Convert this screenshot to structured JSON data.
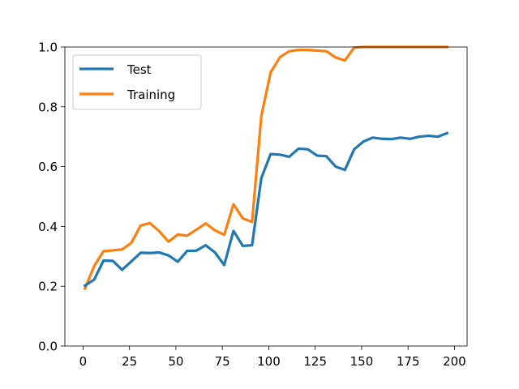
{
  "chart_data": {
    "type": "line",
    "title": "",
    "xlabel": "",
    "ylabel": "",
    "xlim": [
      -9.8,
      206.8
    ],
    "ylim": [
      0.0,
      1.0
    ],
    "xticks": [
      0,
      25,
      50,
      75,
      100,
      125,
      150,
      175,
      200
    ],
    "xtick_labels": [
      "0",
      "25",
      "50",
      "75",
      "100",
      "125",
      "150",
      "175",
      "200"
    ],
    "yticks": [
      0.0,
      0.2,
      0.4,
      0.6,
      0.8,
      1.0
    ],
    "ytick_labels": [
      "0.0",
      "0.2",
      "0.4",
      "0.6",
      "0.8",
      "1.0"
    ],
    "grid": false,
    "legend_position": "top-left",
    "x": [
      1,
      6,
      11,
      16,
      21,
      26,
      31,
      36,
      41,
      46,
      51,
      56,
      61,
      66,
      71,
      76,
      81,
      86,
      91,
      96,
      101,
      106,
      111,
      116,
      121,
      126,
      131,
      136,
      141,
      146,
      151,
      156,
      161,
      166,
      171,
      176,
      181,
      186,
      191,
      196
    ],
    "series": [
      {
        "name": "Test",
        "color": "#1f77b4",
        "values": [
          0.202,
          0.222,
          0.286,
          0.285,
          0.255,
          0.283,
          0.312,
          0.311,
          0.313,
          0.303,
          0.282,
          0.318,
          0.319,
          0.337,
          0.313,
          0.271,
          0.385,
          0.335,
          0.337,
          0.562,
          0.642,
          0.64,
          0.633,
          0.66,
          0.658,
          0.637,
          0.635,
          0.6,
          0.589,
          0.658,
          0.684,
          0.697,
          0.693,
          0.692,
          0.697,
          0.693,
          0.7,
          0.703,
          0.7,
          0.712
        ]
      },
      {
        "name": "Training",
        "color": "#ff7f0e",
        "values": [
          0.192,
          0.268,
          0.317,
          0.32,
          0.323,
          0.345,
          0.403,
          0.411,
          0.384,
          0.349,
          0.373,
          0.369,
          0.389,
          0.41,
          0.387,
          0.372,
          0.474,
          0.427,
          0.415,
          0.77,
          0.915,
          0.966,
          0.986,
          0.99,
          0.99,
          0.988,
          0.986,
          0.965,
          0.955,
          0.998,
          1.0,
          1.0,
          1.0,
          1.0,
          1.0,
          1.0,
          1.0,
          1.0,
          1.0,
          1.0
        ]
      }
    ]
  }
}
